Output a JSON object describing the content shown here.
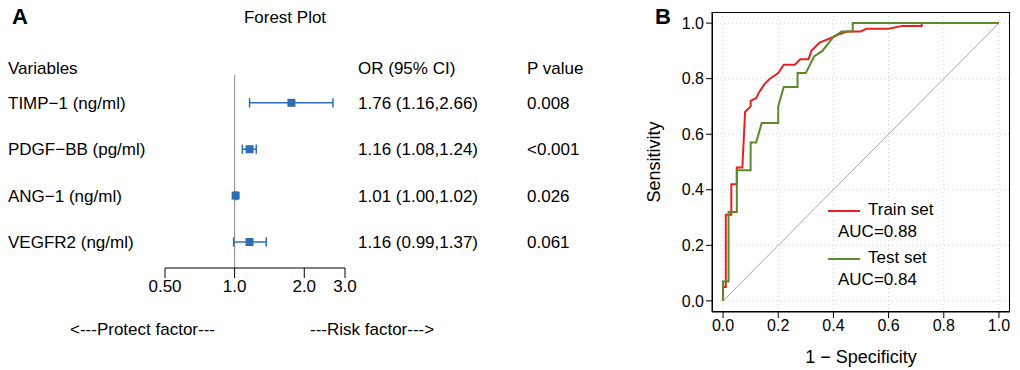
{
  "chart_data": [
    {
      "type": "forest",
      "panel_label": "A",
      "title": "Forest Plot",
      "column_headers": [
        "Variables",
        "OR (95% CI)",
        "P value"
      ],
      "categories": [
        "TIMP−1 (ng/ml)",
        "PDGF−BB (pg/ml)",
        "ANG−1 (ng/ml)",
        "VEGFR2 (ng/ml)"
      ],
      "values": [
        1.76,
        1.16,
        1.01,
        1.16
      ],
      "ci_low": [
        1.16,
        1.08,
        1.0,
        0.99
      ],
      "ci_high": [
        2.66,
        1.24,
        1.02,
        1.37
      ],
      "value_labels": [
        "1.76 (1.16,2.66)",
        "1.16 (1.08,1.24)",
        "1.01 (1.00,1.02)",
        "1.16 (0.99,1.37)"
      ],
      "p_values": [
        "0.008",
        "<0.001",
        "0.026",
        "0.061"
      ],
      "xlim": [
        0.5,
        3
      ],
      "xticks": [
        {
          "value": 0.5,
          "label": "0.50"
        },
        {
          "value": 1,
          "label": "1.0"
        },
        {
          "value": 2,
          "label": "2.0"
        },
        {
          "value": 3,
          "label": "3.0"
        }
      ],
      "log": "x",
      "reference_x": 1,
      "color": "#2e6db4",
      "marker": "square",
      "annotations": [
        "<---Protect factor---",
        "---Risk factor--->"
      ]
    },
    {
      "type": "line",
      "panel_label": "B",
      "x_label": "1 − Specificity",
      "y_label": "Sensitivity",
      "xlim": [
        -0.04,
        1.04
      ],
      "ylim": [
        -0.04,
        1.04
      ],
      "xticks": [
        {
          "value": 0,
          "label": "0.0"
        },
        0.2,
        0.4,
        0.6,
        0.8,
        {
          "value": 1,
          "label": "1.0"
        }
      ],
      "yticks": [
        {
          "value": 0,
          "label": "0.0"
        },
        0.2,
        0.4,
        0.6,
        0.8,
        {
          "value": 1,
          "label": "1.0"
        }
      ],
      "grid": true,
      "legend": "lower right",
      "diagonal": {
        "x": [
          0,
          1
        ],
        "values": [
          0,
          1
        ],
        "color": "#a8a8a8"
      },
      "series": [
        {
          "name": "Train set",
          "annotation": "AUC=0.88",
          "color": "#e8211f",
          "x": [
            0,
            0,
            0.01,
            0.01,
            0.03,
            0.03,
            0.05,
            0.05,
            0.07,
            0.08,
            0.1,
            0.1,
            0.12,
            0.13,
            0.15,
            0.17,
            0.2,
            0.22,
            0.26,
            0.28,
            0.31,
            0.32,
            0.35,
            0.4,
            0.42,
            0.45,
            0.5,
            0.52,
            0.6,
            0.65,
            0.72,
            0.72,
            1.0
          ],
          "values": [
            0,
            0.05,
            0.05,
            0.31,
            0.31,
            0.42,
            0.42,
            0.48,
            0.48,
            0.68,
            0.7,
            0.72,
            0.73,
            0.75,
            0.78,
            0.8,
            0.82,
            0.85,
            0.85,
            0.87,
            0.87,
            0.9,
            0.93,
            0.95,
            0.96,
            0.97,
            0.97,
            0.98,
            0.98,
            0.99,
            0.99,
            1.0,
            1.0
          ]
        },
        {
          "name": "Test set",
          "annotation": "AUC=0.84",
          "color": "#5a8a2a",
          "x": [
            0,
            0,
            0.02,
            0.02,
            0.05,
            0.05,
            0.1,
            0.1,
            0.12,
            0.14,
            0.2,
            0.2,
            0.22,
            0.27,
            0.27,
            0.3,
            0.33,
            0.36,
            0.4,
            0.43,
            0.47,
            0.47,
            1.0
          ],
          "values": [
            0,
            0.07,
            0.07,
            0.32,
            0.32,
            0.47,
            0.47,
            0.57,
            0.57,
            0.64,
            0.64,
            0.7,
            0.77,
            0.77,
            0.82,
            0.82,
            0.88,
            0.9,
            0.95,
            0.97,
            0.97,
            1.0,
            1.0
          ]
        }
      ]
    }
  ]
}
